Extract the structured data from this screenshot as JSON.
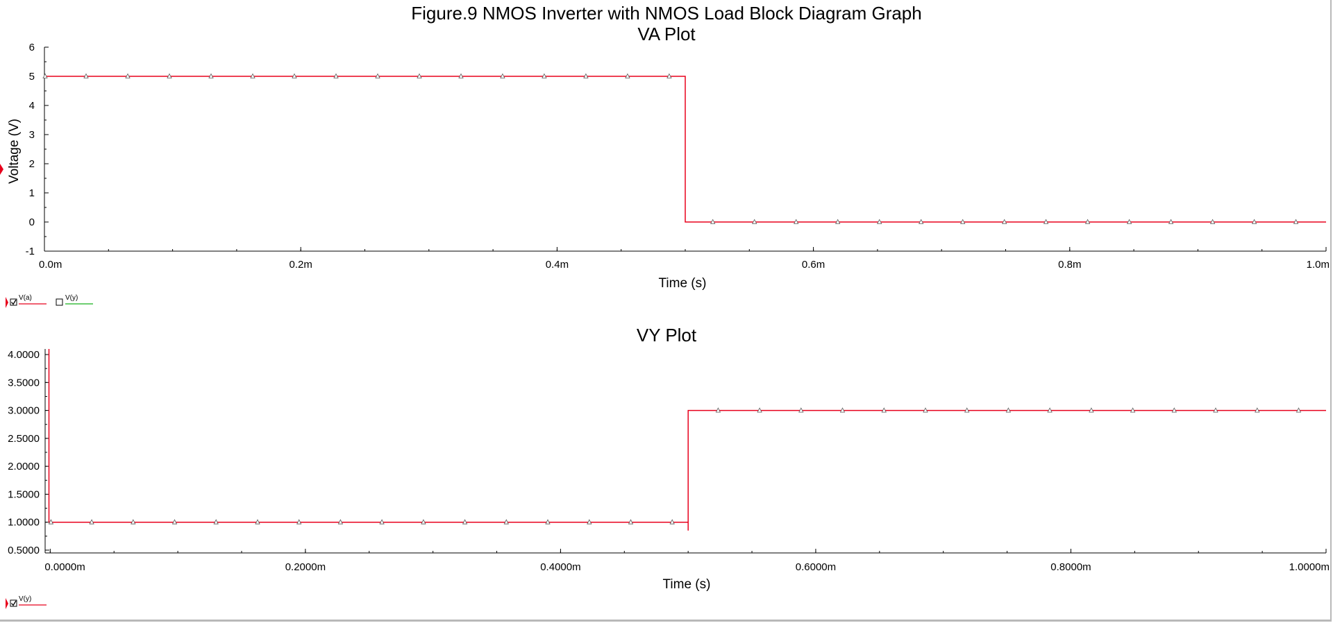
{
  "figure_title": "Figure.9 NMOS Inverter with NMOS Load Block Diagram Graph",
  "top_legend": [
    {
      "label": "V(a)",
      "checked": true,
      "color": "#e8001c"
    },
    {
      "label": "V(y)",
      "checked": false,
      "color": "#16b11b"
    }
  ],
  "bottom_legend": [
    {
      "label": "V(y)",
      "checked": true,
      "color": "#e8001c"
    }
  ],
  "chart_data": [
    {
      "type": "line",
      "title": "VA Plot",
      "xlabel": "Time (s)",
      "ylabel": "Voltage (V)",
      "xlim": [
        0,
        1.0
      ],
      "ylim": [
        -1,
        6
      ],
      "x_unit": "ms",
      "x_ticks": [
        "0.0m",
        "0.2m",
        "0.4m",
        "0.6m",
        "0.8m",
        "1.0m"
      ],
      "y_ticks": [
        "-1",
        "0",
        "1",
        "2",
        "3",
        "4",
        "5",
        "6"
      ],
      "series": [
        {
          "name": "V(a)",
          "color": "#e8001c",
          "x": [
            0,
            0.5,
            0.5,
            1.0
          ],
          "y": [
            5,
            5,
            0,
            0
          ]
        }
      ],
      "marker_x": [
        0.0,
        0.0325,
        0.065,
        0.0975,
        0.13,
        0.1625,
        0.195,
        0.2275,
        0.26,
        0.2925,
        0.325,
        0.3575,
        0.39,
        0.4225,
        0.455,
        0.4875,
        0.5215,
        0.554,
        0.5865,
        0.619,
        0.6515,
        0.684,
        0.7165,
        0.749,
        0.7815,
        0.814,
        0.8465,
        0.879,
        0.9115,
        0.944,
        0.9765
      ]
    },
    {
      "type": "line",
      "title": "VY Plot",
      "xlabel": "Time (s)",
      "ylabel": "",
      "xlim": [
        -0.004,
        1.0
      ],
      "ylim": [
        0.45,
        4.1
      ],
      "x_unit": "ms",
      "x_ticks": [
        "0.0000m",
        "0.2000m",
        "0.4000m",
        "0.6000m",
        "0.8000m",
        "1.0000m"
      ],
      "y_ticks": [
        "0.5000",
        "1.0000",
        "1.5000",
        "2.0000",
        "2.5000",
        "3.0000",
        "3.5000",
        "4.0000"
      ],
      "series": [
        {
          "name": "V(y)",
          "color": "#e8001c",
          "x": [
            -0.001,
            -0.001,
            0.0,
            0.5,
            0.5,
            0.5,
            1.0
          ],
          "y": [
            4.1,
            1.0,
            1.0,
            1.0,
            0.85,
            3.0,
            3.0
          ]
        }
      ],
      "marker_x": [
        0.0,
        0.0325,
        0.065,
        0.0975,
        0.13,
        0.1625,
        0.195,
        0.2275,
        0.26,
        0.2925,
        0.325,
        0.3575,
        0.39,
        0.4225,
        0.455,
        0.4875,
        0.5235,
        0.556,
        0.5885,
        0.621,
        0.6535,
        0.686,
        0.7185,
        0.751,
        0.7835,
        0.816,
        0.8485,
        0.881,
        0.9135,
        0.946,
        0.9785
      ]
    }
  ]
}
